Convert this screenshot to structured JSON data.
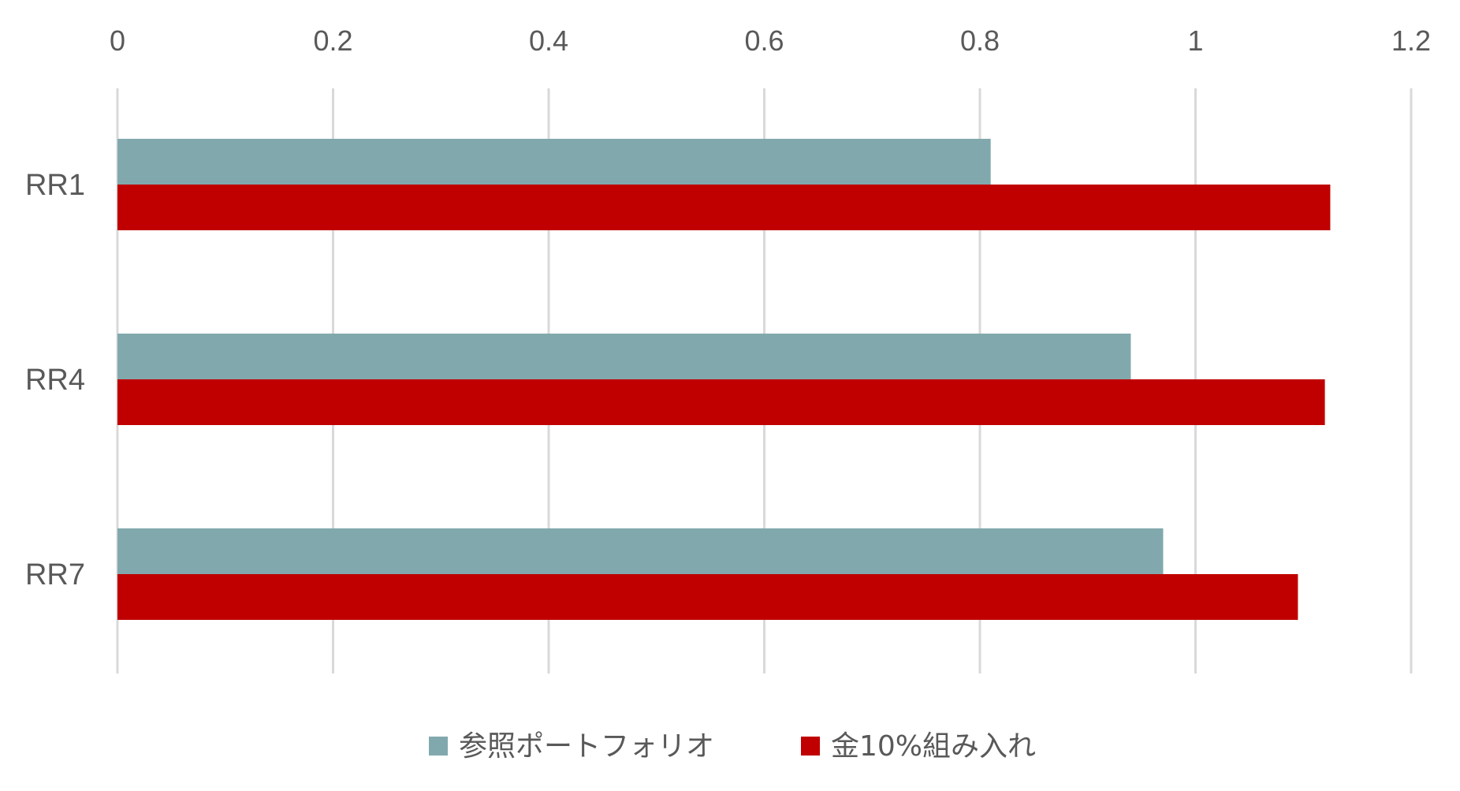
{
  "chart_data": {
    "type": "bar",
    "orientation": "horizontal",
    "title": "",
    "xlabel": "",
    "ylabel": "",
    "categories": [
      "RR1",
      "RR4",
      "RR7"
    ],
    "series": [
      {
        "name": "参照ポートフォリオ",
        "color": "#81A9AD",
        "values": [
          0.81,
          0.94,
          0.97
        ]
      },
      {
        "name": "金10%組み入れ",
        "color": "#C00000",
        "values": [
          1.125,
          1.12,
          1.095
        ]
      }
    ],
    "xlim": [
      0,
      1.2
    ],
    "x_ticks": [
      "0",
      "0.2",
      "0.4",
      "0.6",
      "0.8",
      "1",
      "1.2"
    ],
    "x_tick_values": [
      0,
      0.2,
      0.4,
      0.6,
      0.8,
      1.0,
      1.2
    ],
    "x_axis_position": "top",
    "grid": true,
    "legend_position": "bottom"
  }
}
